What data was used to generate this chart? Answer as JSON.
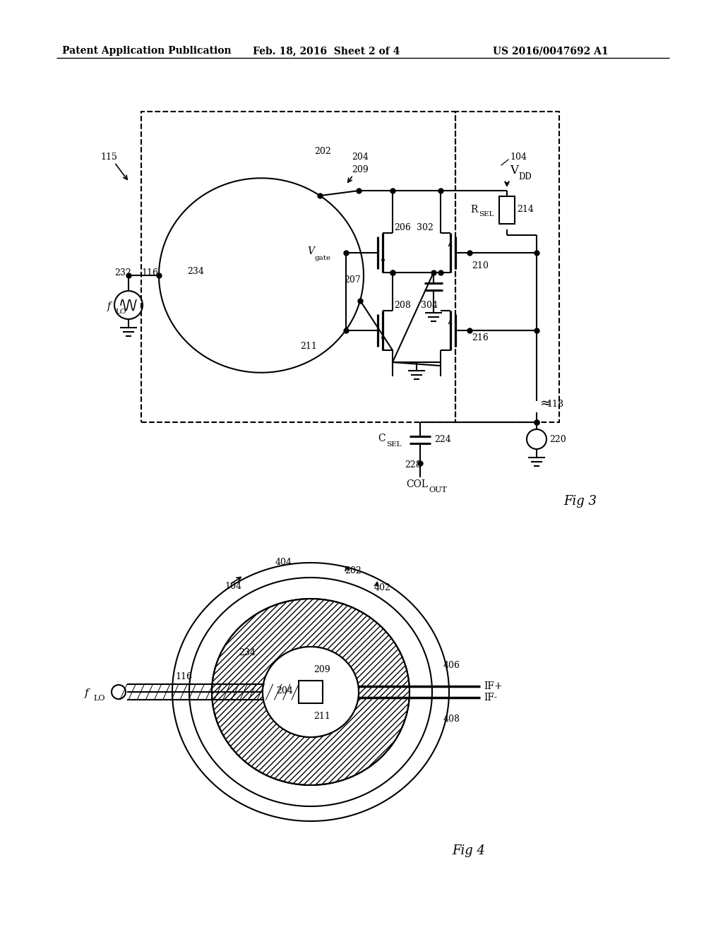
{
  "bg_color": "#ffffff",
  "line_color": "#000000",
  "header_left": "Patent Application Publication",
  "header_mid": "Feb. 18, 2016  Sheet 2 of 4",
  "header_right": "US 2016/0047692 A1",
  "fig3_label": "Fig 3",
  "fig4_label": "Fig 4"
}
